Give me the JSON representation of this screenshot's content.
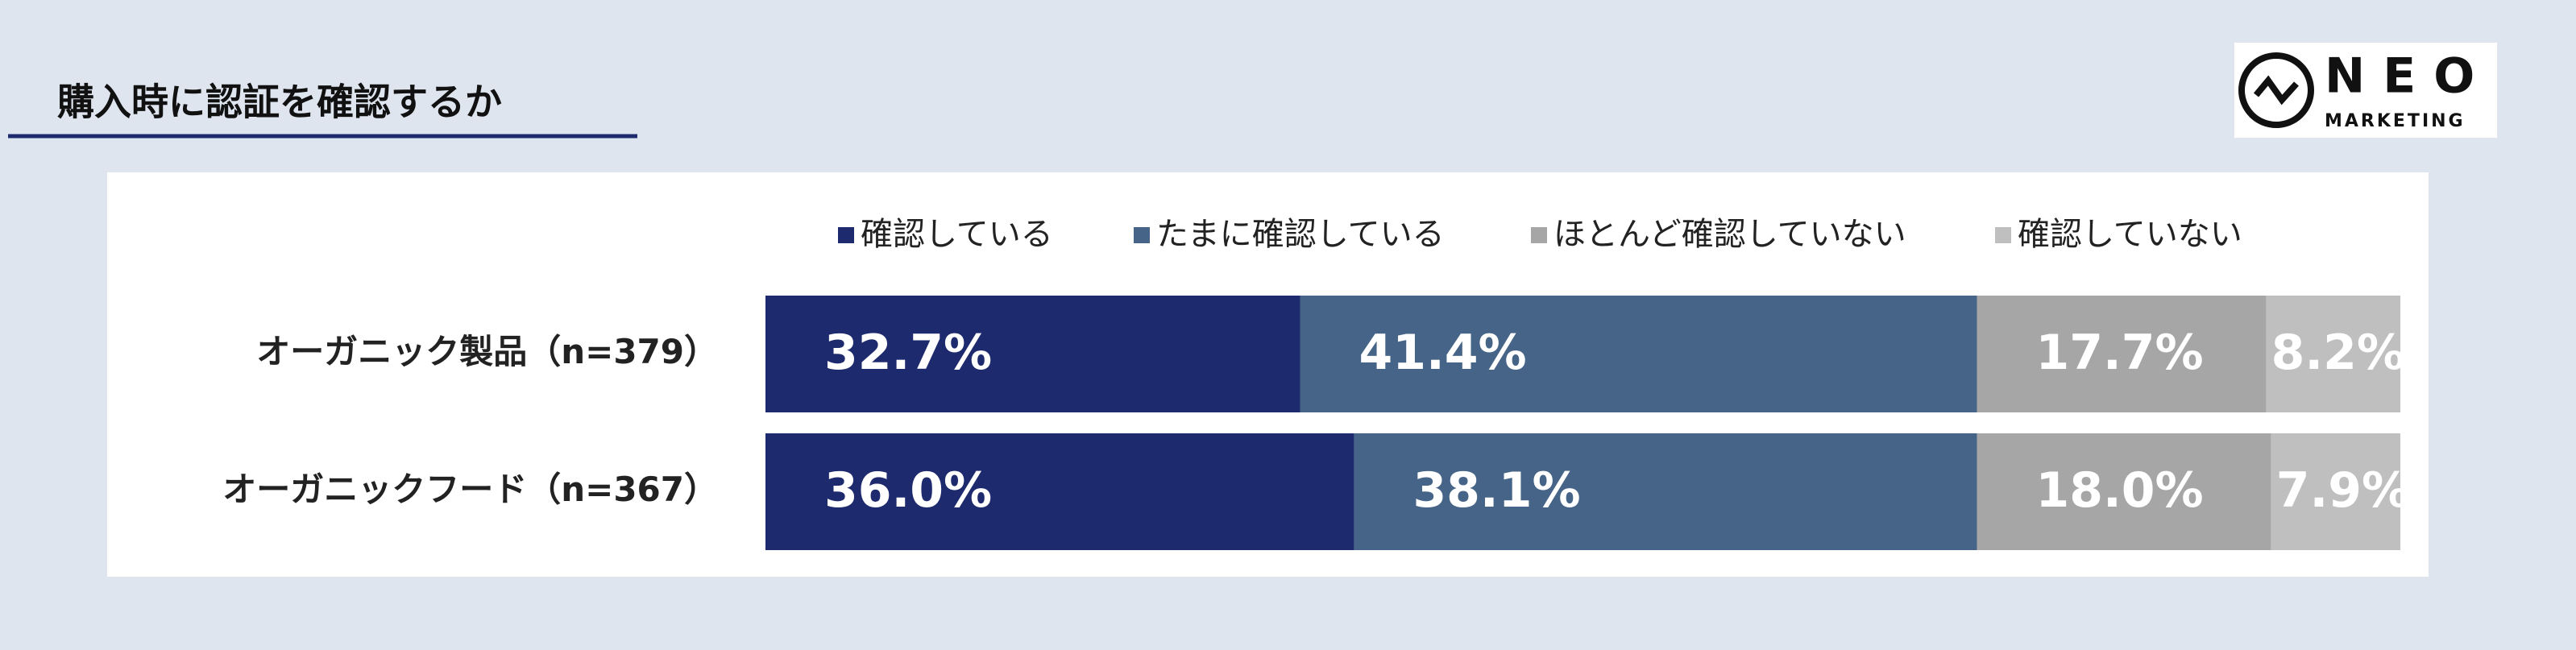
{
  "chart_data": {
    "type": "stacked-bar",
    "orientation": "horizontal",
    "title": "購入時に認証を確認するか",
    "categories": [
      "オーガニック製品（n=379）",
      "オーガニックフード（n=367）"
    ],
    "xlim": [
      0,
      100
    ],
    "series": [
      {
        "name": "確認している",
        "color": "#1e2a6e",
        "values": [
          32.7,
          36.0
        ],
        "value_labels": [
          "32.7%",
          "36.0%"
        ]
      },
      {
        "name": "たまに確認している",
        "color": "#456487",
        "values": [
          41.4,
          38.1
        ],
        "value_labels": [
          "41.4%",
          "38.1%"
        ]
      },
      {
        "name": "ほとんど確認していない",
        "color": "#a6a6a6",
        "values": [
          17.7,
          18.0
        ],
        "value_labels": [
          "17.7%",
          "18.0%"
        ]
      },
      {
        "name": "確認していない",
        "color": "#bfbfbf",
        "values": [
          8.2,
          7.9
        ],
        "value_labels": [
          "8.2%",
          "7.9%"
        ]
      }
    ]
  },
  "logo": {
    "name": "NEO",
    "subtitle": "MARKETING"
  }
}
